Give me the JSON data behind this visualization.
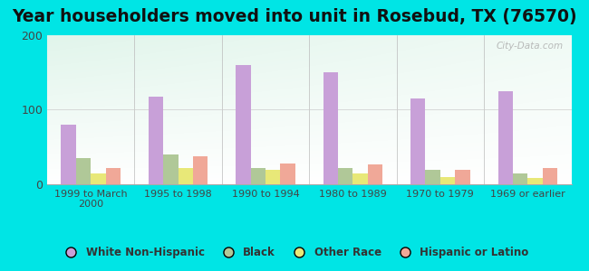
{
  "title": "Year householders moved into unit in Rosebud, TX (76570)",
  "categories": [
    "1999 to March\n2000",
    "1995 to 1998",
    "1990 to 1994",
    "1980 to 1989",
    "1970 to 1979",
    "1969 or earlier"
  ],
  "series": {
    "White Non-Hispanic": [
      80,
      118,
      160,
      150,
      115,
      125
    ],
    "Black": [
      35,
      40,
      22,
      22,
      20,
      14
    ],
    "Other Race": [
      15,
      22,
      20,
      15,
      10,
      8
    ],
    "Hispanic or Latino": [
      22,
      38,
      28,
      27,
      20,
      22
    ]
  },
  "colors": {
    "White Non-Hispanic": "#c8a0d8",
    "Black": "#b0c898",
    "Other Race": "#e8e878",
    "Hispanic or Latino": "#f0a898"
  },
  "ylim": [
    0,
    200
  ],
  "yticks": [
    0,
    100,
    200
  ],
  "bar_width": 0.17,
  "background_color": "#00e5e5",
  "title_fontsize": 13.5,
  "watermark": "City-Data.com"
}
